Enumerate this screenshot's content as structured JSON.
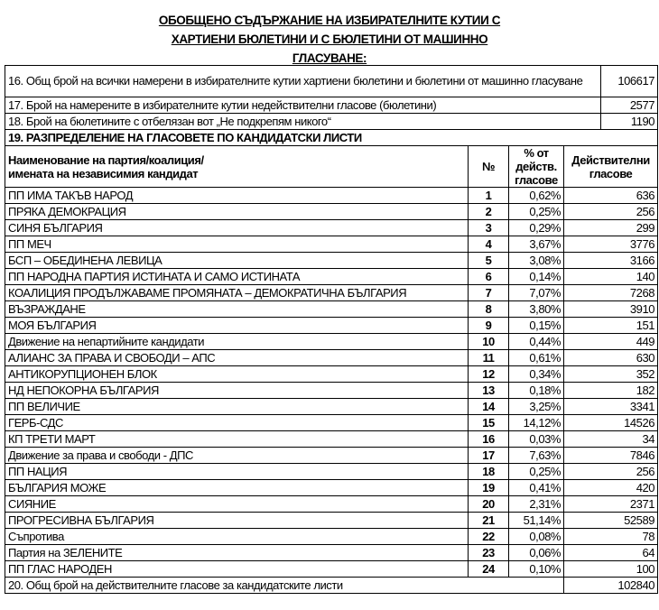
{
  "title_lines": [
    "ОБОБЩЕНО СЪДЪРЖАНИЕ НА ИЗБИРАТЕЛНИТЕ КУТИИ С",
    "ХАРТИЕНИ БЮЛЕТИНИ И С БЮЛЕТИНИ ОТ МАШИННО",
    "ГЛАСУВАНЕ:"
  ],
  "summary": [
    {
      "label": "16. Общ брой на всички намерени в избирателните кутии хартиени бюлетини и бюлетини от машинно гласуване",
      "value": "106617"
    },
    {
      "label": "17. Брой на намерените в избирателните кутии недействителни гласове (бюлетини)",
      "value": "2577"
    },
    {
      "label": "18. Брой на бюлетините с отбелязан вот „Не подкрепям никого“",
      "value": "1190"
    }
  ],
  "section_title": "19. РАЗПРЕДЕЛЕНИЕ НА ГЛАСОВЕТЕ ПО КАНДИДАТСКИ ЛИСТИ",
  "columns": {
    "name": "Наименование на партия/коалиция/ имената на независимия кандидат",
    "no": "№",
    "pct": "% от действ. гласове",
    "votes": "Действителни гласове"
  },
  "rows": [
    {
      "name": "ПП ИМА ТАКЪВ НАРОД",
      "no": "1",
      "pct": "0,62%",
      "votes": "636"
    },
    {
      "name": "ПРЯКА ДЕМОКРАЦИЯ",
      "no": "2",
      "pct": "0,25%",
      "votes": "256"
    },
    {
      "name": "СИНЯ БЪЛГАРИЯ",
      "no": "3",
      "pct": "0,29%",
      "votes": "299"
    },
    {
      "name": "ПП МЕЧ",
      "no": "4",
      "pct": "3,67%",
      "votes": "3776"
    },
    {
      "name": "БСП – ОБЕДИНЕНА ЛЕВИЦА",
      "no": "5",
      "pct": "3,08%",
      "votes": "3166"
    },
    {
      "name": "ПП НАРОДНА ПАРТИЯ ИСТИНАТА И САМО ИСТИНАТА",
      "no": "6",
      "pct": "0,14%",
      "votes": "140"
    },
    {
      "name": "КОАЛИЦИЯ ПРОДЪЛЖАВАМЕ ПРОМЯНАТА – ДЕМОКРАТИЧНА БЪЛГАРИЯ",
      "no": "7",
      "pct": "7,07%",
      "votes": "7268"
    },
    {
      "name": "ВЪЗРАЖДАНЕ",
      "no": "8",
      "pct": "3,80%",
      "votes": "3910"
    },
    {
      "name": "МОЯ БЪЛГАРИЯ",
      "no": "9",
      "pct": "0,15%",
      "votes": "151"
    },
    {
      "name": "Движение на непартийните кандидати",
      "no": "10",
      "pct": "0,44%",
      "votes": "449"
    },
    {
      "name": "АЛИАНС ЗА ПРАВА И СВОБОДИ – АПС",
      "no": "11",
      "pct": "0,61%",
      "votes": "630"
    },
    {
      "name": "АНТИКОРУПЦИОНЕН БЛОК",
      "no": "12",
      "pct": "0,34%",
      "votes": "352"
    },
    {
      "name": "НД НЕПОКОРНА БЪЛГАРИЯ",
      "no": "13",
      "pct": "0,18%",
      "votes": "182"
    },
    {
      "name": "ПП ВЕЛИЧИЕ",
      "no": "14",
      "pct": "3,25%",
      "votes": "3341"
    },
    {
      "name": "ГЕРБ-СДС",
      "no": "15",
      "pct": "14,12%",
      "votes": "14526"
    },
    {
      "name": "КП ТРЕТИ МАРТ",
      "no": "16",
      "pct": "0,03%",
      "votes": "34"
    },
    {
      "name": "Движение за права и свободи - ДПС",
      "no": "17",
      "pct": "7,63%",
      "votes": "7846"
    },
    {
      "name": "ПП НАЦИЯ",
      "no": "18",
      "pct": "0,25%",
      "votes": "256"
    },
    {
      "name": "БЪЛГАРИЯ МОЖЕ",
      "no": "19",
      "pct": "0,41%",
      "votes": "420"
    },
    {
      "name": "СИЯНИЕ",
      "no": "20",
      "pct": "2,31%",
      "votes": "2371"
    },
    {
      "name": "ПРОГРЕСИВНА БЪЛГАРИЯ",
      "no": "21",
      "pct": "51,14%",
      "votes": "52589"
    },
    {
      "name": "Съпротива",
      "no": "22",
      "pct": "0,08%",
      "votes": "78"
    },
    {
      "name": "Партия на ЗЕЛЕНИТЕ",
      "no": "23",
      "pct": "0,06%",
      "votes": "64"
    },
    {
      "name": "ПП ГЛАС НАРОДЕН",
      "no": "24",
      "pct": "0,10%",
      "votes": "100"
    }
  ],
  "total": {
    "label": "20. Общ брой на действителните гласове за кандидатските листи",
    "value": "102840"
  }
}
